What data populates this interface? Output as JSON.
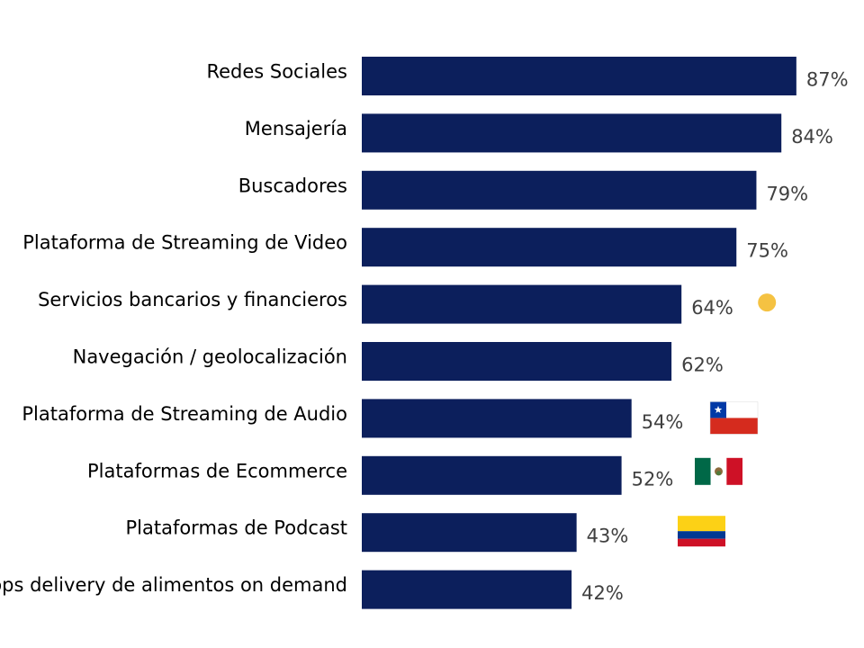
{
  "chart_data": {
    "type": "bar",
    "orientation": "horizontal",
    "categories": [
      "Redes Sociales",
      "Mensajería",
      "Buscadores",
      "Plataforma de Streaming de Video",
      "Servicios bancarios y financieros",
      "Navegación / geolocalización",
      "Plataforma de Streaming de Audio",
      "Plataformas de Ecommerce",
      "Plataformas de Podcast",
      "Apps delivery de alimentos on demand"
    ],
    "values": [
      87,
      84,
      79,
      75,
      64,
      62,
      54,
      52,
      43,
      42
    ],
    "value_labels": [
      "87%",
      "84%",
      "79%",
      "75%",
      "64%",
      "62%",
      "54%",
      "52%",
      "43%",
      "42%"
    ],
    "unit": "%",
    "xlim": [
      0,
      100
    ],
    "bar_color": "#0c1f5c",
    "grid": false,
    "markers": [
      {
        "category_index": 4,
        "kind": "dot",
        "color": "#f5c242"
      },
      {
        "category_index": 6,
        "kind": "flag-chile"
      },
      {
        "category_index": 7,
        "kind": "flag-mexico"
      },
      {
        "category_index": 8,
        "kind": "flag-colombia"
      }
    ]
  }
}
